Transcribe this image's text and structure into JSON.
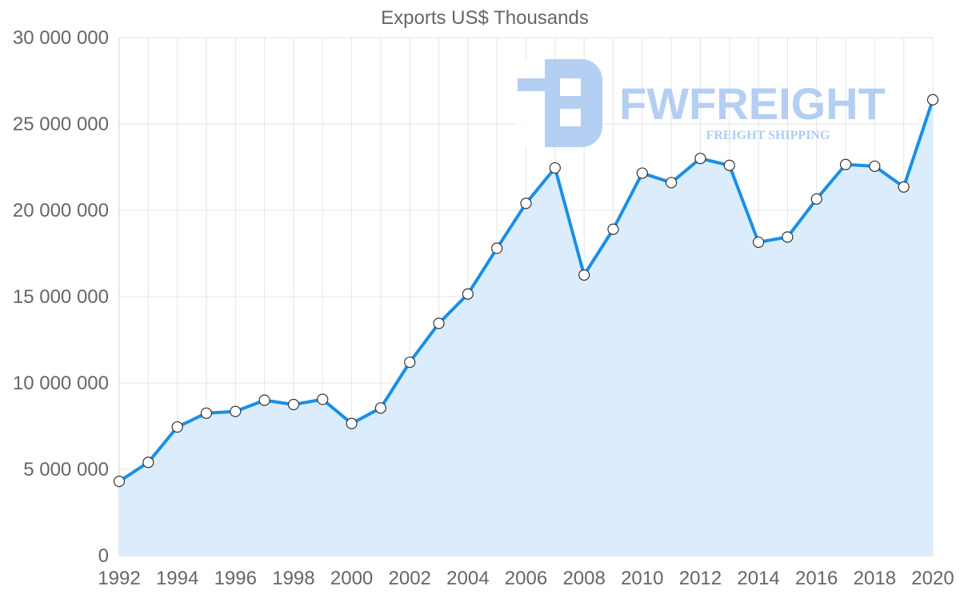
{
  "chart_data": {
    "type": "area",
    "title": "Exports US$ Thousands",
    "xlabel": "",
    "ylabel": "",
    "ylim": [
      0,
      30000000
    ],
    "yticks": [
      0,
      5000000,
      10000000,
      15000000,
      20000000,
      25000000,
      30000000
    ],
    "ytick_labels": [
      "0",
      "5 000 000",
      "10 000 000",
      "15 000 000",
      "20 000 000",
      "25 000 000",
      "30 000 000"
    ],
    "xlim": [
      1992,
      2020
    ],
    "xticks": [
      1992,
      1994,
      1996,
      1998,
      2000,
      2002,
      2004,
      2006,
      2008,
      2010,
      2012,
      2014,
      2016,
      2018,
      2020
    ],
    "xtick_labels": [
      "1992",
      "1994",
      "1996",
      "1998",
      "2000",
      "2002",
      "2004",
      "2006",
      "2008",
      "2010",
      "2012",
      "2014",
      "2016",
      "2018",
      "2020"
    ],
    "grid": true,
    "series": [
      {
        "name": "Exports US$ Thousands",
        "x": [
          1992,
          1993,
          1994,
          1995,
          1996,
          1997,
          1998,
          1999,
          2000,
          2001,
          2002,
          2003,
          2004,
          2005,
          2006,
          2007,
          2008,
          2009,
          2010,
          2011,
          2012,
          2013,
          2014,
          2015,
          2016,
          2017,
          2018,
          2019,
          2020
        ],
        "values": [
          4300000,
          5400000,
          7450000,
          8250000,
          8350000,
          9000000,
          8750000,
          9050000,
          7650000,
          8550000,
          11200000,
          13450000,
          15150000,
          17800000,
          20400000,
          22450000,
          16250000,
          18900000,
          22150000,
          21600000,
          23000000,
          22600000,
          18150000,
          18450000,
          20650000,
          22650000,
          22550000,
          21350000,
          26400000
        ]
      }
    ],
    "colors": {
      "line": "#1a8fe8",
      "fill": "#dbedfd",
      "marker_fill": "#ffffff",
      "marker_stroke": "#333333"
    }
  },
  "watermark": {
    "brand": "FWFREIGHT",
    "tagline": "FREIGHT SHIPPING",
    "color": "#a9c7f2"
  }
}
